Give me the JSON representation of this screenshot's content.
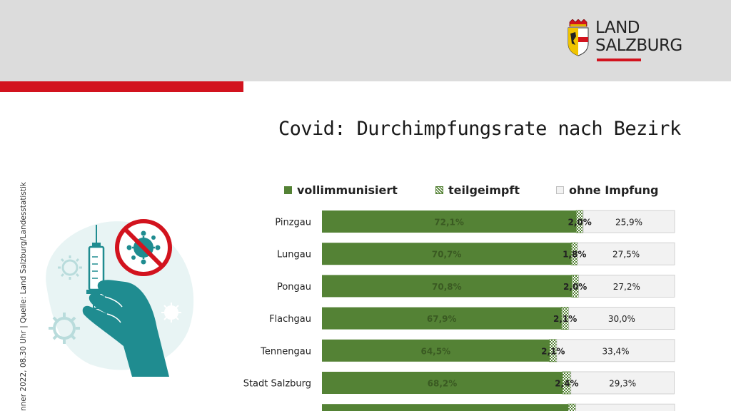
{
  "header": {
    "logo_line1": "LAND",
    "logo_line2": "SALZBURG"
  },
  "side_caption": "nner  2022, 08.30 Uhr | Quelle: Land Salzburg/Landesstatistik",
  "colors": {
    "full": "#548235",
    "partial": "#548235",
    "none": "#f2f2f2",
    "accent_red": "#d2131e",
    "header_gray": "#dcdcdc",
    "illustration_teal": "#1f8c90"
  },
  "illustration": {
    "icon": "vaccine-syringe-hand-no-virus-icon"
  },
  "chart_data": {
    "type": "bar",
    "orientation": "horizontal",
    "stacked": true,
    "title": "Covid: Durchimpfungsrate nach Bezirk",
    "categories": [
      "Pinzgau",
      "Lungau",
      "Pongau",
      "Flachgau",
      "Tennengau",
      "Stadt Salzburg",
      ""
    ],
    "series": [
      {
        "name": "vollimmunisiert",
        "values": [
          72.1,
          70.7,
          70.8,
          67.9,
          64.5,
          68.2,
          69.8
        ],
        "labels": [
          "72,1%",
          "70,7%",
          "70,8%",
          "67,9%",
          "64,5%",
          "68,2%",
          ""
        ]
      },
      {
        "name": "teilgeimpft",
        "values": [
          2.0,
          1.8,
          2.0,
          2.1,
          2.1,
          2.4,
          2.2
        ],
        "labels": [
          "2,0%",
          "1,8%",
          "2,0%",
          "2,1%",
          "2,1%",
          "2,4%",
          ""
        ]
      },
      {
        "name": "ohne Impfung",
        "values": [
          25.9,
          27.5,
          27.2,
          30.0,
          33.4,
          29.3,
          28.0
        ],
        "labels": [
          "25,9%",
          "27,5%",
          "27,2%",
          "30,0%",
          "33,4%",
          "29,3%",
          ""
        ]
      }
    ],
    "xlim": [
      0,
      100
    ],
    "grid": false,
    "legend_position": "top"
  }
}
